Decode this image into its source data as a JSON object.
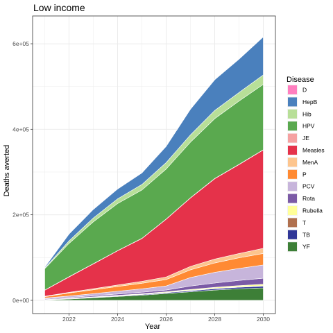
{
  "chart_data": {
    "type": "area",
    "stacked": true,
    "title": "Low income",
    "xlabel": "Year",
    "ylabel": "Deaths averted",
    "x": [
      2021,
      2022,
      2023,
      2024,
      2025,
      2026,
      2027,
      2028,
      2029,
      2030
    ],
    "xticks": [
      2022,
      2024,
      2026,
      2028,
      2030
    ],
    "xlim": [
      2020.5,
      2030.5
    ],
    "yticks": [
      0,
      200000,
      400000,
      600000
    ],
    "ytick_labels": [
      "0e+00",
      "2e+05",
      "4e+05",
      "6e+05"
    ],
    "ylim": [
      -31000,
      665000
    ],
    "grid": true,
    "legend": {
      "title": "Disease",
      "position": "right"
    },
    "series": [
      {
        "name": "D",
        "color": "#ff7fbf",
        "values": [
          100,
          100,
          100,
          100,
          100,
          100,
          100,
          100,
          100,
          100
        ]
      },
      {
        "name": "HepB",
        "color": "#4a80bd",
        "values": [
          2000,
          16000,
          20000,
          23000,
          27000,
          38000,
          60000,
          72000,
          78000,
          89000
        ]
      },
      {
        "name": "Hib",
        "color": "#b8df98",
        "values": [
          1500,
          6000,
          9000,
          11000,
          13000,
          15000,
          17000,
          19000,
          20000,
          22000
        ]
      },
      {
        "name": "HPV",
        "color": "#5aa94f",
        "values": [
          50000,
          78000,
          98000,
          110000,
          113000,
          117000,
          130000,
          140000,
          148000,
          153000
        ]
      },
      {
        "name": "JE",
        "color": "#f5a1a1",
        "values": [
          500,
          500,
          500,
          500,
          500,
          500,
          500,
          500,
          500,
          500
        ]
      },
      {
        "name": "Measles",
        "color": "#e5324a",
        "values": [
          14000,
          36000,
          58000,
          80000,
          100000,
          135000,
          160000,
          188000,
          208000,
          230000
        ]
      },
      {
        "name": "MenA",
        "color": "#fdc58e",
        "values": [
          1000,
          1500,
          2500,
          3500,
          4500,
          6000,
          8000,
          9000,
          10000,
          12000
        ]
      },
      {
        "name": "P",
        "color": "#ff8a33",
        "values": [
          3000,
          7000,
          9000,
          11000,
          13000,
          15000,
          18000,
          22000,
          25000,
          27000
        ]
      },
      {
        "name": "PCV",
        "color": "#c7b5db",
        "values": [
          2000,
          3500,
          5000,
          6500,
          8000,
          9500,
          20000,
          25000,
          28000,
          31000
        ]
      },
      {
        "name": "Rota",
        "color": "#7b5aa6",
        "values": [
          1500,
          2000,
          2500,
          3000,
          3500,
          4000,
          8000,
          10000,
          12000,
          14000
        ]
      },
      {
        "name": "Rubella",
        "color": "#ffff99",
        "values": [
          300,
          500,
          700,
          1000,
          1300,
          1600,
          2000,
          2500,
          3000,
          3500
        ]
      },
      {
        "name": "T",
        "color": "#b0704e",
        "values": [
          200,
          300,
          400,
          500,
          600,
          700,
          800,
          900,
          1000,
          1100
        ]
      },
      {
        "name": "TB",
        "color": "#303797",
        "values": [
          500,
          800,
          1000,
          1300,
          1500,
          1800,
          2500,
          3000,
          3500,
          4000
        ]
      },
      {
        "name": "YF",
        "color": "#3d7f37",
        "values": [
          1000,
          3000,
          6000,
          9000,
          12000,
          16000,
          20000,
          24000,
          27000,
          29000
        ]
      }
    ]
  }
}
